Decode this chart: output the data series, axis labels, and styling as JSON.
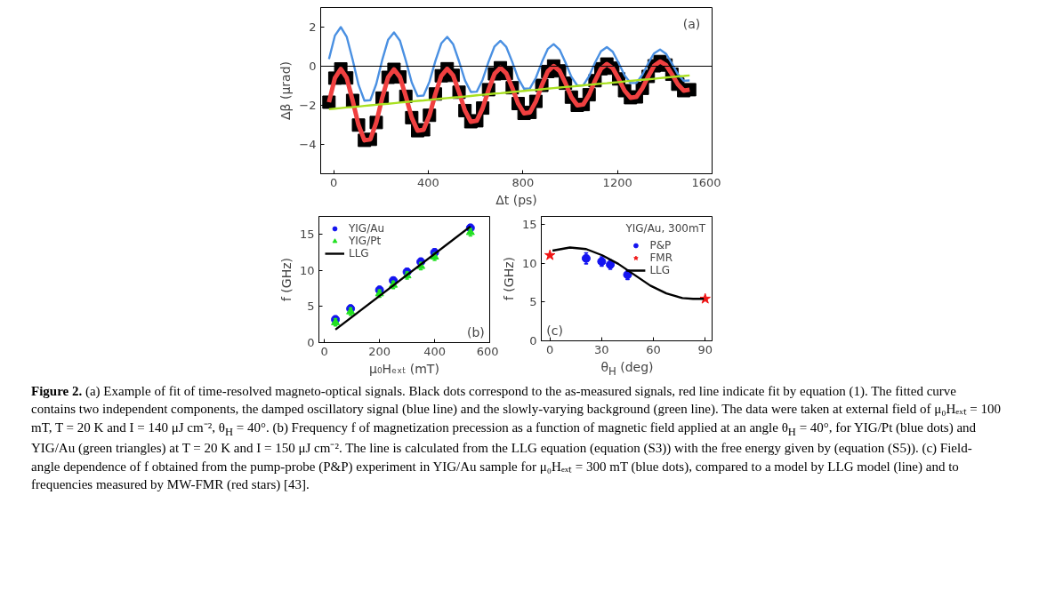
{
  "chart_data": [
    {
      "type": "line",
      "xlabel": "Δt (ps)",
      "ylabel": "Δβ (µrad)",
      "xlim": [
        -55,
        1600
      ],
      "ylim": [
        -5.5,
        3
      ],
      "xticks": [
        0,
        400,
        800,
        1200,
        1600
      ],
      "yticks": [
        -4,
        -2,
        0,
        2
      ],
      "x": [
        -20,
        5,
        30,
        55,
        80,
        105,
        130,
        155,
        180,
        205,
        230,
        255,
        280,
        305,
        330,
        355,
        380,
        405,
        430,
        455,
        480,
        505,
        530,
        555,
        580,
        605,
        630,
        655,
        680,
        705,
        730,
        755,
        780,
        805,
        830,
        855,
        880,
        905,
        930,
        955,
        980,
        1005,
        1030,
        1055,
        1080,
        1105,
        1130,
        1155,
        1180,
        1205,
        1230,
        1255,
        1280,
        1305,
        1330,
        1355,
        1380,
        1405,
        1430,
        1455,
        1480,
        1505
      ],
      "series": [
        {
          "type": "scatter",
          "marker": "square",
          "color": "#000000",
          "values": [
            -1.84,
            -0.61,
            -0.14,
            -0.6,
            -1.75,
            -3.01,
            -3.79,
            -3.74,
            -2.88,
            -1.63,
            -0.57,
            -0.16,
            -0.55,
            -1.54,
            -2.63,
            -3.3,
            -3.25,
            -2.51,
            -1.42,
            -0.49,
            -0.13,
            -0.47,
            -1.33,
            -2.27,
            -2.84,
            -2.79,
            -2.14,
            -1.2,
            -0.39,
            -0.08,
            -0.37,
            -1.1,
            -1.91,
            -2.41,
            -2.36,
            -1.8,
            -0.98,
            -0.27,
            0.01,
            -0.24,
            -0.87,
            -1.58,
            -2.0,
            -1.96,
            -1.46,
            -0.74,
            -0.13,
            0.11,
            -0.1,
            -0.65,
            -1.25,
            -1.61,
            -1.57,
            -1.13,
            -0.52,
            0.02,
            0.24,
            0.06,
            -0.41,
            -0.92,
            -1.25,
            -1.2
          ]
        },
        {
          "type": "line",
          "color": "#f04040",
          "values": [
            -1.84,
            -0.61,
            -0.14,
            -0.6,
            -1.75,
            -3.01,
            -3.79,
            -3.74,
            -2.88,
            -1.63,
            -0.57,
            -0.16,
            -0.55,
            -1.54,
            -2.63,
            -3.3,
            -3.25,
            -2.51,
            -1.42,
            -0.49,
            -0.13,
            -0.47,
            -1.33,
            -2.27,
            -2.84,
            -2.79,
            -2.14,
            -1.2,
            -0.39,
            -0.08,
            -0.37,
            -1.1,
            -1.91,
            -2.41,
            -2.36,
            -1.8,
            -0.98,
            -0.27,
            0.01,
            -0.24,
            -0.87,
            -1.58,
            -2.0,
            -1.96,
            -1.46,
            -0.74,
            -0.13,
            0.11,
            -0.1,
            -0.65,
            -1.25,
            -1.61,
            -1.57,
            -1.13,
            -0.52,
            0.02,
            0.24,
            0.06,
            -0.41,
            -0.92,
            -1.25,
            -1.2
          ]
        },
        {
          "type": "line",
          "color": "#4a90e2",
          "values": [
            0.36,
            1.56,
            2.0,
            1.51,
            0.34,
            -0.95,
            -1.76,
            -1.74,
            -0.91,
            0.31,
            1.35,
            1.73,
            1.31,
            0.29,
            -0.83,
            -1.53,
            -1.5,
            -0.79,
            0.27,
            1.17,
            1.5,
            1.13,
            0.25,
            -0.72,
            -1.32,
            -1.3,
            -0.68,
            0.23,
            1.01,
            1.3,
            0.98,
            0.22,
            -0.62,
            -1.15,
            -1.13,
            -0.59,
            0.2,
            0.88,
            1.13,
            0.85,
            0.19,
            -0.54,
            -0.99,
            -0.98,
            -0.51,
            0.18,
            0.76,
            0.98,
            0.74,
            0.16,
            -0.47,
            -0.86,
            -0.85,
            -0.44,
            0.15,
            0.66,
            0.85,
            0.64,
            0.14,
            -0.4,
            -0.75,
            -0.73
          ]
        },
        {
          "type": "line",
          "color": "#a8e020",
          "values": [
            -2.2,
            -2.17,
            -2.14,
            -2.11,
            -2.09,
            -2.06,
            -2.03,
            -2.0,
            -1.97,
            -1.94,
            -1.92,
            -1.89,
            -1.86,
            -1.83,
            -1.8,
            -1.77,
            -1.75,
            -1.72,
            -1.69,
            -1.66,
            -1.63,
            -1.6,
            -1.58,
            -1.55,
            -1.52,
            -1.49,
            -1.46,
            -1.43,
            -1.4,
            -1.38,
            -1.35,
            -1.32,
            -1.29,
            -1.26,
            -1.23,
            -1.21,
            -1.18,
            -1.15,
            -1.12,
            -1.09,
            -1.06,
            -1.04,
            -1.01,
            -0.98,
            -0.95,
            -0.92,
            -0.89,
            -0.87,
            -0.84,
            -0.81,
            -0.78,
            -0.75,
            -0.72,
            -0.69,
            -0.67,
            -0.64,
            -0.61,
            -0.58,
            -0.55,
            -0.52,
            -0.5,
            -0.47
          ]
        }
      ],
      "ref_lines": [
        {
          "axis": "y",
          "value": 0,
          "color": "#000000"
        }
      ],
      "annotations": [
        "(a)",
        "Figure 2.",
        "(a) Example of fit of time-resolved magneto-optical signals. Black dots correspond to the as-measured signals, red line indicate fit by equation (1). The fitted curve contains two independent components, the damped oscillatory signal (blue line) and the slowly-varying background (green line). The data were taken at external field of μ₀Hₑₓₜ = 100 mT, T = 20 K and I = 140 μJ cm⁻², θ$_{H}$ = 40°. (b) Frequency f of magnetization precession as a function of magnetic field applied at an angle θ$_{H}$ = 40°, for YIG/Pt (blue dots) and YIG/Au (green triangles) at T = 20 K and I = 150 μJ cm⁻². The line is calculated from the LLG equation (equation (S3)) with the free energy given by (equation (S5)). (c) Field-angle dependence of f obtained from the pump-probe (P&P) experiment in YIG/Au sample for μ₀Hₑₓₜ = 300 mT (blue dots), compared to a model by LLG model (line) and to frequencies measured by MW-FMR (red stars) [43]."
      ]
    },
    {
      "type": "scatter",
      "xlabel": "μ₀Hₑₓₜ (mT)",
      "ylabel": "f (GHz)",
      "xlim": [
        -20,
        600
      ],
      "ylim": [
        0,
        17.5
      ],
      "xticks": [
        0,
        200,
        400,
        600
      ],
      "yticks": [
        0,
        5,
        10,
        15
      ],
      "legend": "top left",
      "x": [
        40,
        95,
        200,
        250,
        300,
        350,
        400,
        530
      ],
      "series": [
        {
          "name": "YIG/Au",
          "marker": "circle",
          "color": "#1414f0",
          "values": [
            3.2,
            4.7,
            7.3,
            8.6,
            9.8,
            11.2,
            12.5,
            15.9
          ],
          "errors": [
            0.5,
            0.5,
            0.5,
            0.5,
            0.5,
            0.5,
            0.5,
            0.5
          ]
        },
        {
          "name": "YIG/Pt",
          "marker": "triangle",
          "color": "#22e022",
          "values": [
            2.8,
            4.3,
            6.8,
            8.0,
            9.3,
            10.6,
            11.9,
            15.3
          ],
          "errors": [
            0.5,
            0.5,
            0.5,
            0.5,
            0.5,
            0.5,
            0.5,
            0.5
          ]
        },
        {
          "name": "LLG",
          "type": "line",
          "color": "#000000",
          "x": [
            40,
            530
          ],
          "values": [
            1.8,
            16.1
          ]
        }
      ],
      "annotations": [
        "(b)"
      ]
    },
    {
      "type": "scatter",
      "xlabel": "θ$_{H}$ (deg)",
      "ylabel": "f (GHz)",
      "xlim": [
        -5,
        94
      ],
      "ylim": [
        0,
        16
      ],
      "xticks": [
        0,
        30,
        60,
        90
      ],
      "yticks": [
        0,
        5,
        10,
        15
      ],
      "legend": "top right",
      "legend_title": "YIG/Au, 300mT",
      "series": [
        {
          "name": "P&P",
          "marker": "circle",
          "color": "#1414f0",
          "x": [
            21,
            30,
            35,
            45
          ],
          "values": [
            10.6,
            10.2,
            9.8,
            8.5
          ],
          "errors": [
            0.7,
            0.6,
            0.6,
            0.6
          ]
        },
        {
          "name": "FMR",
          "marker": "star",
          "color": "#f01414",
          "x": [
            0,
            90
          ],
          "values": [
            11.0,
            5.4
          ]
        },
        {
          "name": "LLG",
          "type": "line",
          "color": "#000000",
          "x": [
            1.5,
            11.6,
            21,
            30.3,
            39.6,
            48.9,
            58.2,
            67.5,
            76.8,
            83,
            89.2
          ],
          "values": [
            11.6,
            12.0,
            11.8,
            11.0,
            9.9,
            8.5,
            7.1,
            6.1,
            5.5,
            5.4,
            5.4
          ]
        }
      ],
      "annotations": [
        "(c)"
      ]
    }
  ]
}
